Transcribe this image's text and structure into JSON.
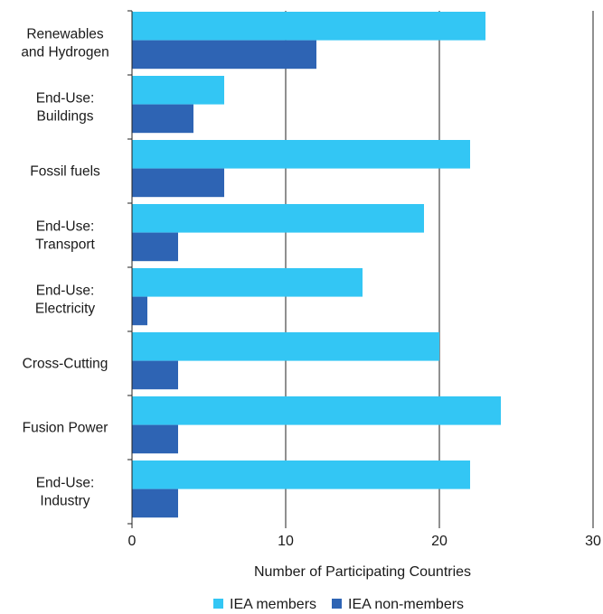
{
  "chart_data": {
    "type": "bar",
    "orientation": "horizontal",
    "categories": [
      [
        "Renewables",
        "and Hydrogen"
      ],
      [
        "End-Use:",
        "Buildings"
      ],
      [
        "Fossil fuels"
      ],
      [
        "End-Use:",
        "Transport"
      ],
      [
        "End-Use:",
        "Electricity"
      ],
      [
        "Cross-Cutting"
      ],
      [
        "Fusion Power"
      ],
      [
        "End-Use:",
        "Industry"
      ]
    ],
    "series": [
      {
        "name": "IEA members",
        "color": "#33c6f4",
        "values": [
          23,
          6,
          22,
          19,
          15,
          20,
          24,
          22
        ]
      },
      {
        "name": "IEA non-members",
        "color": "#2e64b4",
        "values": [
          12,
          4,
          6,
          3,
          1,
          3,
          3,
          3
        ]
      }
    ],
    "xlabel": "Number of Participating Countries",
    "ylabel": "",
    "xlim": [
      0,
      30
    ],
    "xticks": [
      0,
      10,
      20,
      30
    ],
    "grid": "vertical",
    "legend": "bottom"
  }
}
